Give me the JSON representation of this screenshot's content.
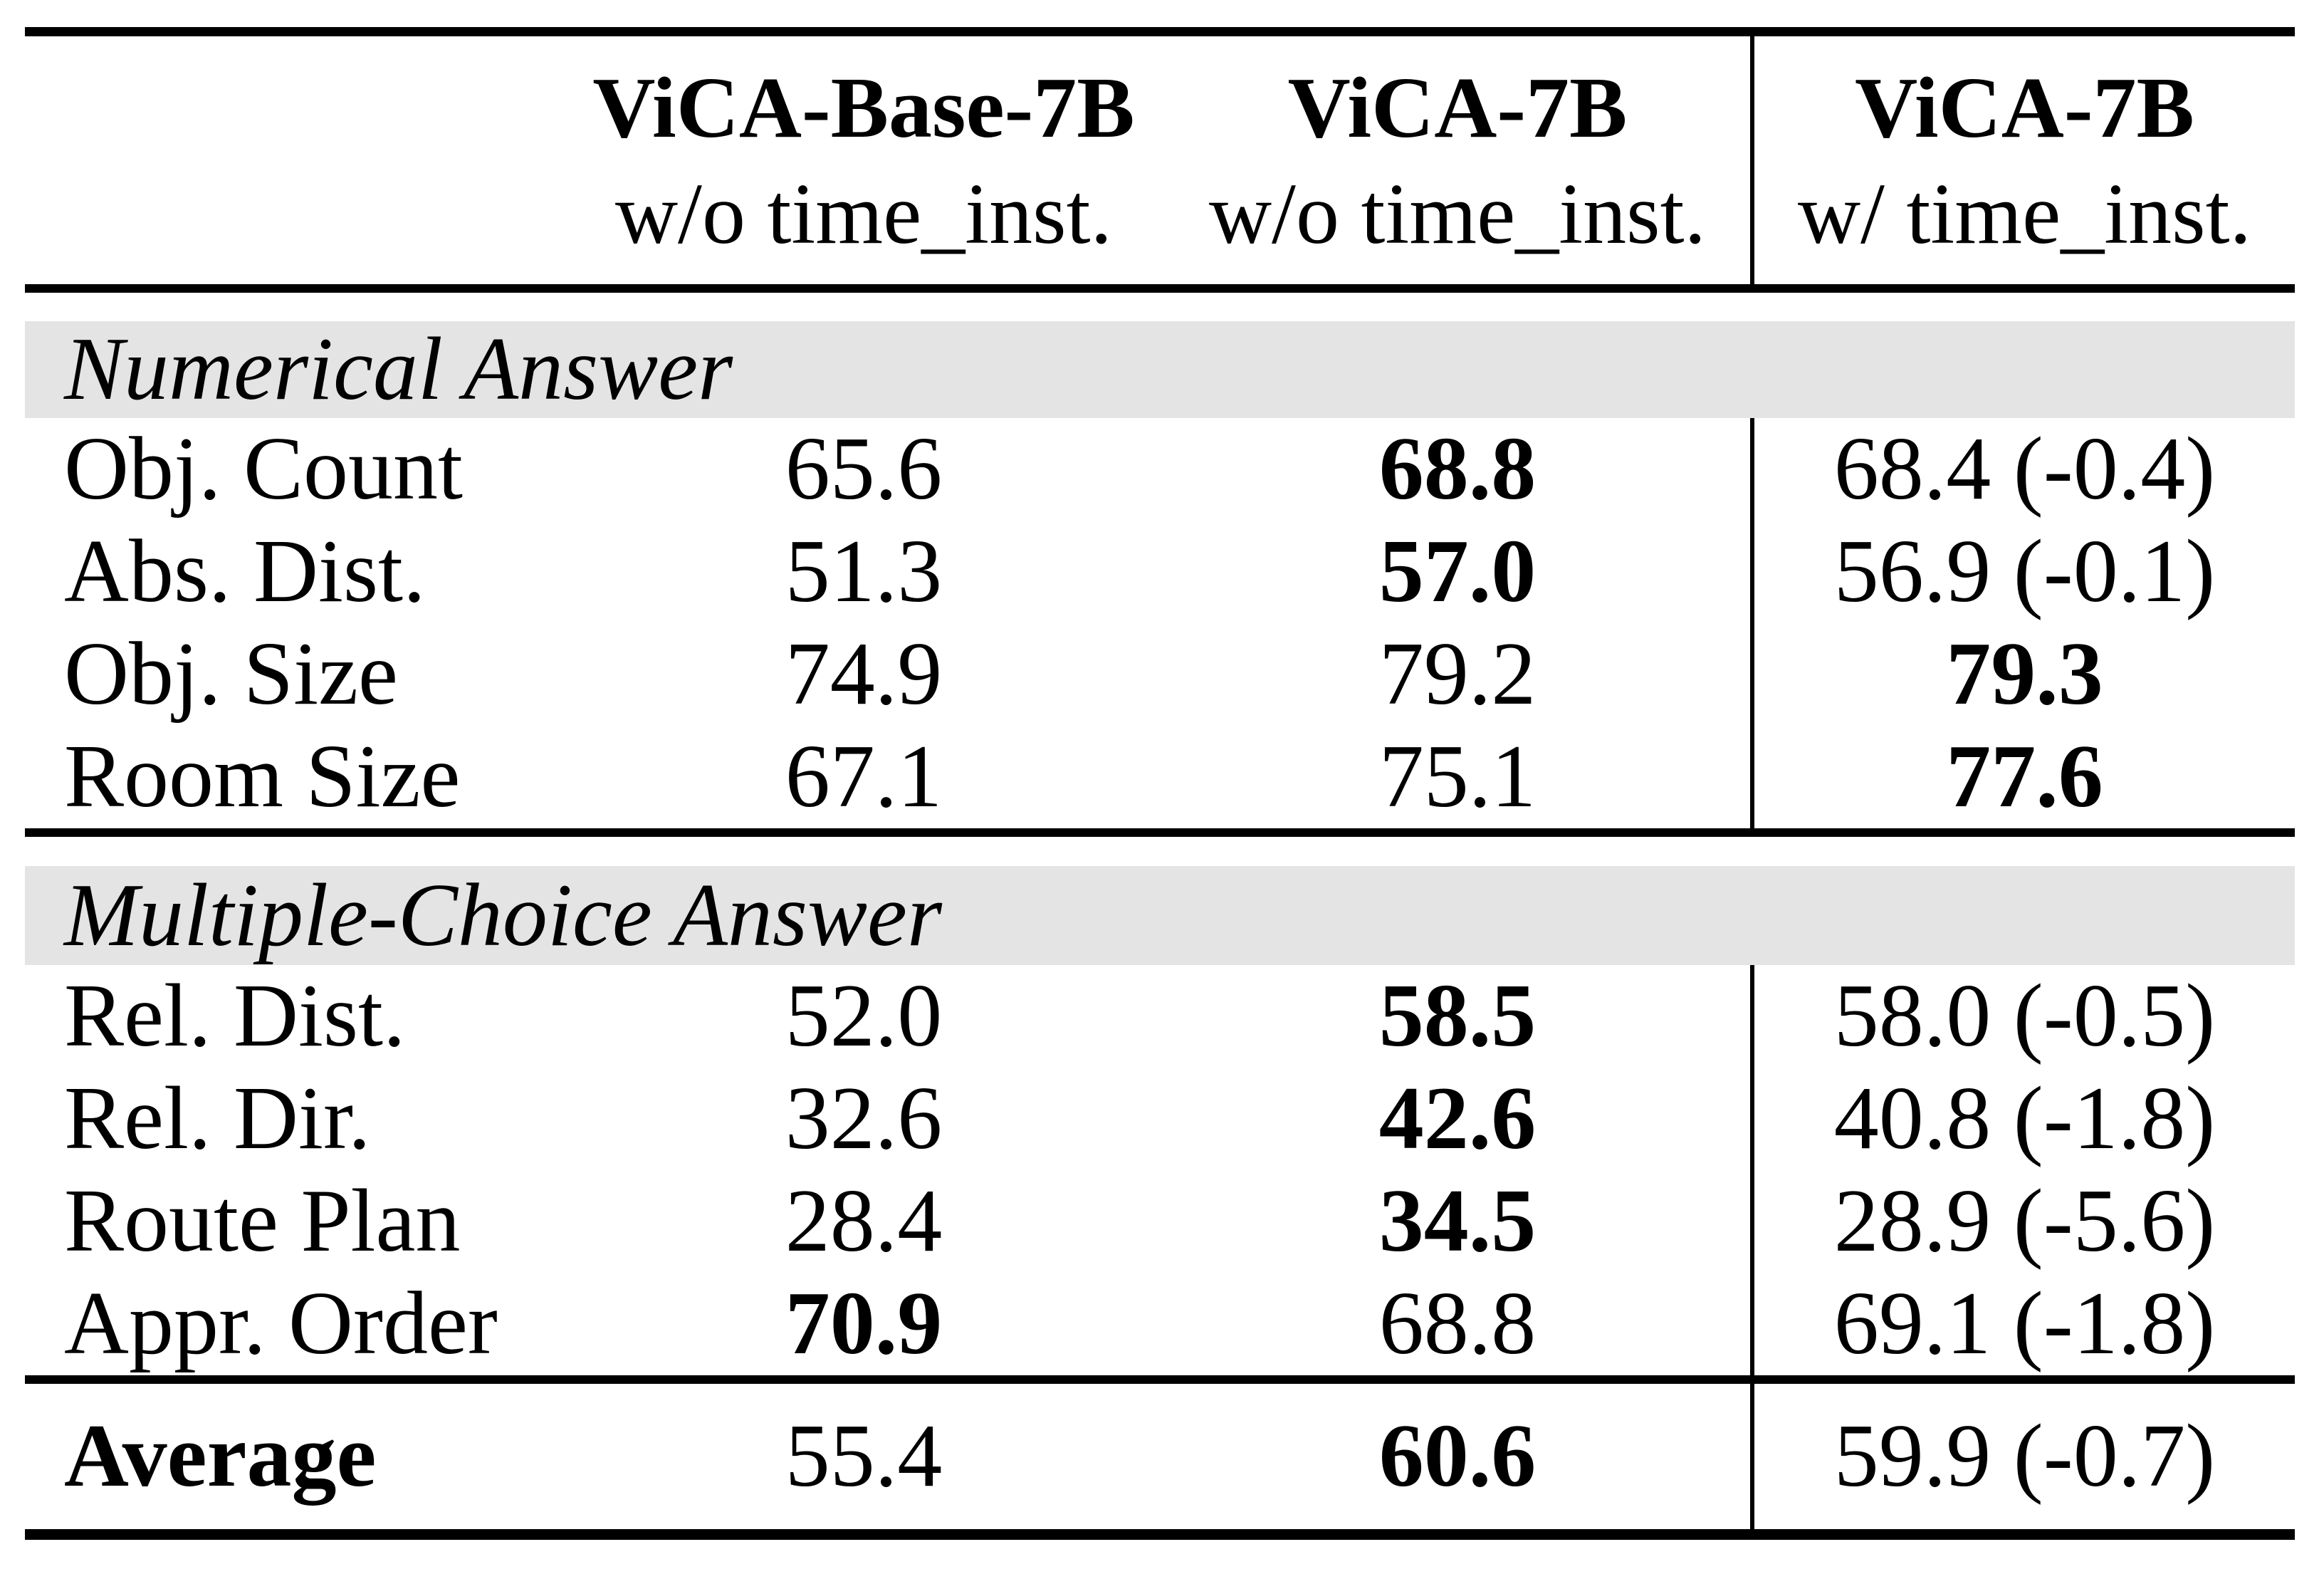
{
  "table": {
    "colors": {
      "rule": "#000000",
      "section_band": "#e4e4e4",
      "text": "#000000",
      "background": "#ffffff"
    },
    "header": {
      "columns": [
        {
          "name": "ViCA-Base-7B",
          "subtitle": "w/o time_inst."
        },
        {
          "name": "ViCA-7B",
          "subtitle": "w/o time_inst."
        },
        {
          "name": "ViCA-7B",
          "subtitle": "w/ time_inst."
        }
      ]
    },
    "sections": [
      {
        "title": "Numerical Answer",
        "rows": [
          {
            "label": "Obj. Count",
            "values": [
              {
                "text": "65.6",
                "bold": false
              },
              {
                "text": "68.8",
                "bold": true
              },
              {
                "text": "68.4 (-0.4)",
                "bold": false
              }
            ]
          },
          {
            "label": "Abs. Dist.",
            "values": [
              {
                "text": "51.3",
                "bold": false
              },
              {
                "text": "57.0",
                "bold": true
              },
              {
                "text": "56.9 (-0.1)",
                "bold": false
              }
            ]
          },
          {
            "label": "Obj. Size",
            "values": [
              {
                "text": "74.9",
                "bold": false
              },
              {
                "text": "79.2",
                "bold": false
              },
              {
                "text": "79.3",
                "bold": true
              }
            ]
          },
          {
            "label": "Room Size",
            "values": [
              {
                "text": "67.1",
                "bold": false
              },
              {
                "text": "75.1",
                "bold": false
              },
              {
                "text": "77.6",
                "bold": true
              }
            ]
          }
        ]
      },
      {
        "title": "Multiple-Choice Answer",
        "rows": [
          {
            "label": "Rel. Dist.",
            "values": [
              {
                "text": "52.0",
                "bold": false
              },
              {
                "text": "58.5",
                "bold": true
              },
              {
                "text": "58.0 (-0.5)",
                "bold": false
              }
            ]
          },
          {
            "label": "Rel. Dir.",
            "values": [
              {
                "text": "32.6",
                "bold": false
              },
              {
                "text": "42.6",
                "bold": true
              },
              {
                "text": "40.8 (-1.8)",
                "bold": false
              }
            ]
          },
          {
            "label": "Route Plan",
            "values": [
              {
                "text": "28.4",
                "bold": false
              },
              {
                "text": "34.5",
                "bold": true
              },
              {
                "text": "28.9 (-5.6)",
                "bold": false
              }
            ]
          },
          {
            "label": "Appr. Order",
            "values": [
              {
                "text": "70.9",
                "bold": true
              },
              {
                "text": "68.8",
                "bold": false
              },
              {
                "text": "69.1 (-1.8)",
                "bold": false
              }
            ]
          }
        ]
      }
    ],
    "footer": {
      "label": "Average",
      "label_bold": true,
      "values": [
        {
          "text": "55.4",
          "bold": false
        },
        {
          "text": "60.6",
          "bold": true
        },
        {
          "text": "59.9 (-0.7)",
          "bold": false
        }
      ]
    }
  }
}
